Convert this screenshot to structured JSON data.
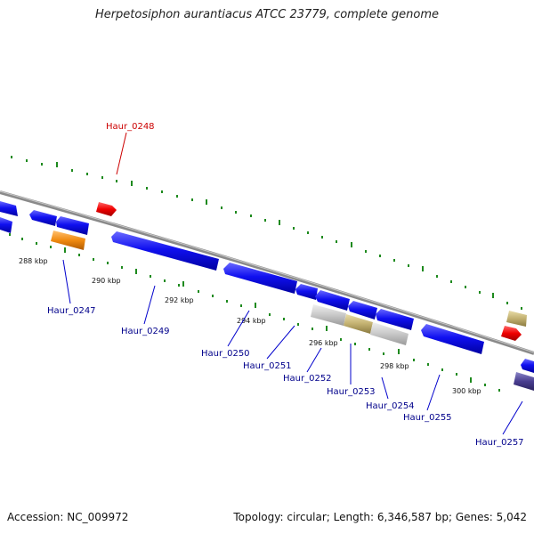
{
  "title": "Herpetosiphon aurantiacus ATCC 23779, complete genome",
  "footer": {
    "accession": "Accession: NC_009972",
    "summary": "Topology: circular; Length: 6,346,587 bp; Genes: 5,042"
  },
  "colors": {
    "backbone": "#8a8a8a",
    "tick": "#1e8a1e",
    "label_default": "#00008b",
    "label_highlight": "#cc0000",
    "leader_default": "#0000cc",
    "leader_highlight": "#cc0000"
  },
  "ruler": [
    "288 kbp",
    "290 kbp",
    "292 kbp",
    "294 kbp",
    "296 kbp",
    "298 kbp",
    "300 kbp"
  ],
  "gene_labels": [
    {
      "id": "Haur_0247",
      "text": "Haur_0247",
      "highlight": false
    },
    {
      "id": "Haur_0248",
      "text": "Haur_0248",
      "highlight": true
    },
    {
      "id": "Haur_0249",
      "text": "Haur_0249",
      "highlight": false
    },
    {
      "id": "Haur_0250",
      "text": "Haur_0250",
      "highlight": false
    },
    {
      "id": "Haur_0251",
      "text": "Haur_0251",
      "highlight": false
    },
    {
      "id": "Haur_0252",
      "text": "Haur_0252",
      "highlight": false
    },
    {
      "id": "Haur_0253",
      "text": "Haur_0253",
      "highlight": false
    },
    {
      "id": "Haur_0254",
      "text": "Haur_0254",
      "highlight": false
    },
    {
      "id": "Haur_0255",
      "text": "Haur_0255",
      "highlight": false
    },
    {
      "id": "Haur_0257",
      "text": "Haur_0257",
      "highlight": false
    }
  ]
}
